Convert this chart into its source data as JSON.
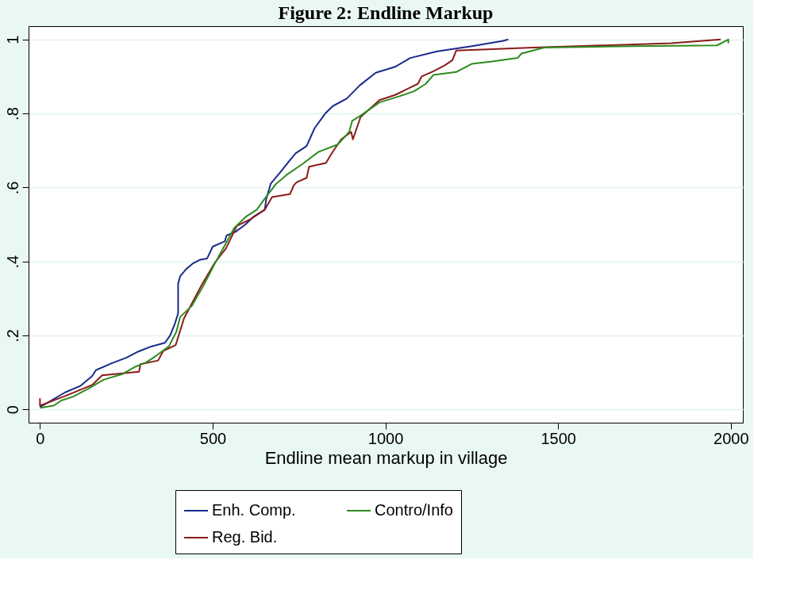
{
  "chart_data": {
    "type": "line",
    "title": "Figure 2: Endline Markup",
    "xlabel": "Endline mean markup in village",
    "xlim": [
      -33,
      2035
    ],
    "ylim": [
      -0.036,
      1.036
    ],
    "xticks": [
      0,
      500,
      1000,
      1500,
      2000
    ],
    "yticks": [
      {
        "value": 0,
        "label": "0"
      },
      {
        "value": 0.2,
        "label": ".2"
      },
      {
        "value": 0.4,
        "label": ".4"
      },
      {
        "value": 0.6,
        "label": ".6"
      },
      {
        "value": 0.8,
        "label": ".8"
      },
      {
        "value": 1,
        "label": "1"
      }
    ],
    "grid": "y",
    "legend": "bottom",
    "line_style": "solid",
    "marker": "none",
    "series": [
      {
        "name": "Enh. Comp.",
        "color": "#1a2a8c",
        "x": [
          0,
          73,
          118,
          151,
          162,
          206,
          251,
          284,
          322,
          362,
          377,
          390,
          400,
          400,
          406,
          424,
          442,
          462,
          484,
          500,
          535,
          540,
          566,
          595,
          617,
          651,
          655,
          668,
          695,
          717,
          740,
          772,
          795,
          826,
          848,
          888,
          926,
          972,
          1028,
          1072,
          1150,
          1250,
          1338,
          1356
        ],
        "values": [
          0.006,
          0.046,
          0.064,
          0.09,
          0.106,
          0.124,
          0.14,
          0.156,
          0.17,
          0.18,
          0.2,
          0.23,
          0.26,
          0.34,
          0.36,
          0.38,
          0.394,
          0.404,
          0.408,
          0.44,
          0.454,
          0.47,
          0.48,
          0.5,
          0.52,
          0.54,
          0.568,
          0.61,
          0.64,
          0.666,
          0.692,
          0.712,
          0.76,
          0.8,
          0.82,
          0.84,
          0.876,
          0.91,
          0.926,
          0.95,
          0.968,
          0.982,
          0.996,
          1.0
        ]
      },
      {
        "name": "Reg. Bid.",
        "color": "#8b1a1a",
        "x": [
          0,
          0,
          73,
          151,
          180,
          287,
          291,
          342,
          357,
          393,
          417,
          468,
          506,
          539,
          570,
          613,
          651,
          672,
          724,
          735,
          743,
          772,
          779,
          828,
          846,
          872,
          901,
          906,
          928,
          983,
          1028,
          1072,
          1094,
          1105,
          1139,
          1172,
          1194,
          1205,
          1427,
          1827,
          1971
        ],
        "values": [
          0.03,
          0.01,
          0.036,
          0.066,
          0.092,
          0.102,
          0.122,
          0.132,
          0.158,
          0.174,
          0.246,
          0.336,
          0.396,
          0.436,
          0.496,
          0.516,
          0.54,
          0.574,
          0.582,
          0.606,
          0.614,
          0.626,
          0.656,
          0.666,
          0.694,
          0.73,
          0.75,
          0.73,
          0.79,
          0.836,
          0.85,
          0.87,
          0.88,
          0.9,
          0.914,
          0.93,
          0.944,
          0.97,
          0.978,
          0.99,
          1.0
        ]
      },
      {
        "name": "Contro/Info",
        "color": "#2e8b1e",
        "x": [
          0,
          40,
          62,
          95,
          140,
          184,
          240,
          273,
          306,
          335,
          373,
          395,
          406,
          440,
          473,
          506,
          539,
          562,
          595,
          628,
          651,
          684,
          717,
          761,
          806,
          862,
          895,
          904,
          928,
          983,
          1039,
          1083,
          1117,
          1139,
          1205,
          1250,
          1305,
          1383,
          1394,
          1460,
          1716,
          1960,
          1993,
          1993
        ],
        "values": [
          0.004,
          0.01,
          0.024,
          0.034,
          0.056,
          0.08,
          0.096,
          0.114,
          0.126,
          0.144,
          0.17,
          0.21,
          0.25,
          0.28,
          0.334,
          0.394,
          0.45,
          0.49,
          0.52,
          0.54,
          0.57,
          0.61,
          0.636,
          0.664,
          0.696,
          0.716,
          0.75,
          0.78,
          0.794,
          0.83,
          0.846,
          0.86,
          0.88,
          0.904,
          0.912,
          0.934,
          0.94,
          0.95,
          0.962,
          0.978,
          0.982,
          0.984,
          1.0,
          0.99
        ]
      }
    ]
  }
}
